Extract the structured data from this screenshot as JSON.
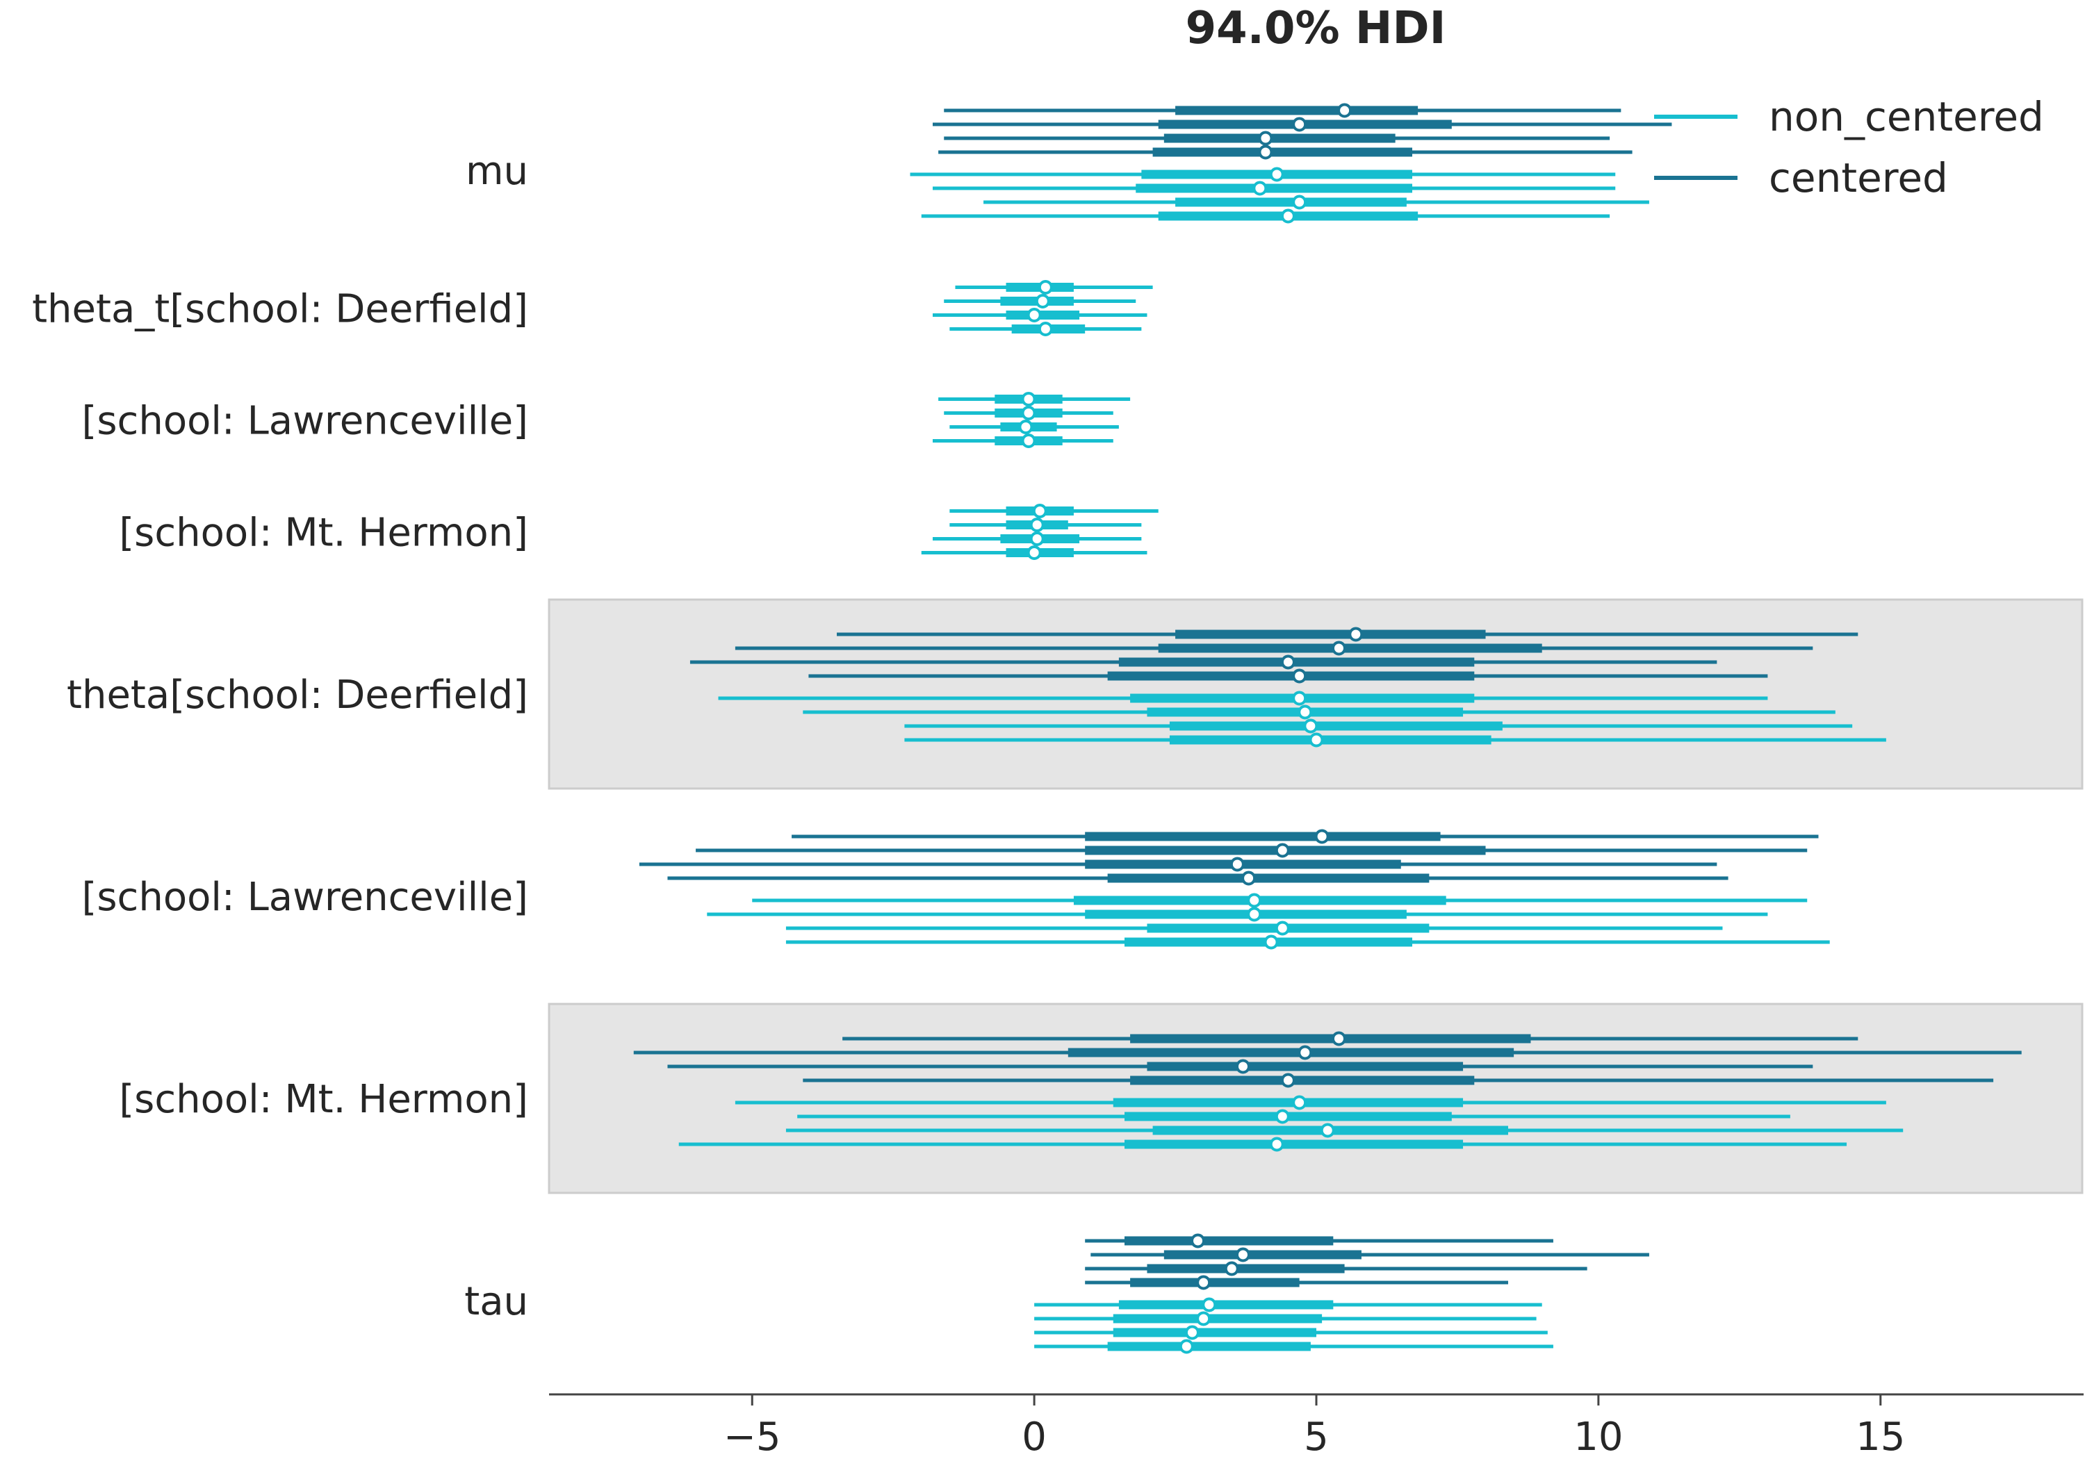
{
  "chart_data": {
    "type": "forest",
    "title": "94.0% HDI",
    "xlim": [
      -8.6,
      18.6
    ],
    "xticks": [
      {
        "value": -5,
        "label": "−5"
      },
      {
        "value": 0,
        "label": "0"
      },
      {
        "value": 5,
        "label": "5"
      },
      {
        "value": 10,
        "label": "10"
      },
      {
        "value": 15,
        "label": "15"
      }
    ],
    "colors": {
      "non_centered": "#17becf",
      "centered": "#1a7392",
      "band": "#e5e5e5",
      "axis": "#444444",
      "text": "#262626"
    },
    "legend": [
      {
        "name": "non_centered",
        "series": "non_centered"
      },
      {
        "name": "centered",
        "series": "centered"
      }
    ],
    "groups": [
      {
        "label": "mu",
        "shaded": false,
        "series": [
          {
            "name": "centered",
            "chains": [
              {
                "hdi": [
                  -1.6,
                  10.4
                ],
                "iqr": [
                  2.5,
                  6.8
                ],
                "median": 5.5
              },
              {
                "hdi": [
                  -1.8,
                  11.3
                ],
                "iqr": [
                  2.2,
                  7.4
                ],
                "median": 4.7
              },
              {
                "hdi": [
                  -1.6,
                  10.2
                ],
                "iqr": [
                  2.3,
                  6.4
                ],
                "median": 4.1
              },
              {
                "hdi": [
                  -1.7,
                  10.6
                ],
                "iqr": [
                  2.1,
                  6.7
                ],
                "median": 4.1
              }
            ]
          },
          {
            "name": "non_centered",
            "chains": [
              {
                "hdi": [
                  -2.2,
                  10.3
                ],
                "iqr": [
                  1.9,
                  6.7
                ],
                "median": 4.3
              },
              {
                "hdi": [
                  -1.8,
                  10.3
                ],
                "iqr": [
                  1.8,
                  6.7
                ],
                "median": 4.0
              },
              {
                "hdi": [
                  -0.9,
                  10.9
                ],
                "iqr": [
                  2.5,
                  6.6
                ],
                "median": 4.7
              },
              {
                "hdi": [
                  -2.0,
                  10.2
                ],
                "iqr": [
                  2.2,
                  6.8
                ],
                "median": 4.5
              }
            ]
          }
        ]
      },
      {
        "label": "theta_t[school: Deerfield]",
        "shaded": false,
        "series": [
          {
            "name": "non_centered",
            "chains": [
              {
                "hdi": [
                  -1.4,
                  2.1
                ],
                "iqr": [
                  -0.5,
                  0.7
                ],
                "median": 0.2
              },
              {
                "hdi": [
                  -1.6,
                  1.8
                ],
                "iqr": [
                  -0.6,
                  0.7
                ],
                "median": 0.15
              },
              {
                "hdi": [
                  -1.8,
                  2.0
                ],
                "iqr": [
                  -0.5,
                  0.8
                ],
                "median": 0.0
              },
              {
                "hdi": [
                  -1.5,
                  1.9
                ],
                "iqr": [
                  -0.4,
                  0.9
                ],
                "median": 0.2
              }
            ]
          }
        ]
      },
      {
        "label": "[school: Lawrenceville]",
        "shaded": false,
        "series": [
          {
            "name": "non_centered",
            "chains": [
              {
                "hdi": [
                  -1.7,
                  1.7
                ],
                "iqr": [
                  -0.7,
                  0.5
                ],
                "median": -0.1
              },
              {
                "hdi": [
                  -1.6,
                  1.4
                ],
                "iqr": [
                  -0.7,
                  0.5
                ],
                "median": -0.1
              },
              {
                "hdi": [
                  -1.5,
                  1.5
                ],
                "iqr": [
                  -0.6,
                  0.4
                ],
                "median": -0.15
              },
              {
                "hdi": [
                  -1.8,
                  1.4
                ],
                "iqr": [
                  -0.7,
                  0.5
                ],
                "median": -0.1
              }
            ]
          }
        ]
      },
      {
        "label": "[school: Mt. Hermon]",
        "shaded": false,
        "series": [
          {
            "name": "non_centered",
            "chains": [
              {
                "hdi": [
                  -1.5,
                  2.2
                ],
                "iqr": [
                  -0.5,
                  0.7
                ],
                "median": 0.1
              },
              {
                "hdi": [
                  -1.5,
                  1.9
                ],
                "iqr": [
                  -0.5,
                  0.6
                ],
                "median": 0.05
              },
              {
                "hdi": [
                  -1.8,
                  1.9
                ],
                "iqr": [
                  -0.6,
                  0.8
                ],
                "median": 0.05
              },
              {
                "hdi": [
                  -2.0,
                  2.0
                ],
                "iqr": [
                  -0.5,
                  0.7
                ],
                "median": 0.0
              }
            ]
          }
        ]
      },
      {
        "label": "theta[school: Deerfield]",
        "shaded": true,
        "series": [
          {
            "name": "centered",
            "chains": [
              {
                "hdi": [
                  -3.5,
                  14.6
                ],
                "iqr": [
                  2.5,
                  8.0
                ],
                "median": 5.7
              },
              {
                "hdi": [
                  -5.3,
                  13.8
                ],
                "iqr": [
                  2.2,
                  9.0
                ],
                "median": 5.4
              },
              {
                "hdi": [
                  -6.1,
                  12.1
                ],
                "iqr": [
                  1.5,
                  7.8
                ],
                "median": 4.5
              },
              {
                "hdi": [
                  -4.0,
                  13.0
                ],
                "iqr": [
                  1.3,
                  7.8
                ],
                "median": 4.7
              }
            ]
          },
          {
            "name": "non_centered",
            "chains": [
              {
                "hdi": [
                  -5.6,
                  13.0
                ],
                "iqr": [
                  1.7,
                  7.8
                ],
                "median": 4.7
              },
              {
                "hdi": [
                  -4.1,
                  14.2
                ],
                "iqr": [
                  2.0,
                  7.6
                ],
                "median": 4.8
              },
              {
                "hdi": [
                  -2.3,
                  14.5
                ],
                "iqr": [
                  2.4,
                  8.3
                ],
                "median": 4.9
              },
              {
                "hdi": [
                  -2.3,
                  15.1
                ],
                "iqr": [
                  2.4,
                  8.1
                ],
                "median": 5.0
              }
            ]
          }
        ]
      },
      {
        "label": "[school: Lawrenceville]",
        "shaded": false,
        "series": [
          {
            "name": "centered",
            "chains": [
              {
                "hdi": [
                  -4.3,
                  13.9
                ],
                "iqr": [
                  0.9,
                  7.2
                ],
                "median": 5.1
              },
              {
                "hdi": [
                  -6.0,
                  13.7
                ],
                "iqr": [
                  0.9,
                  8.0
                ],
                "median": 4.4
              },
              {
                "hdi": [
                  -7.0,
                  12.1
                ],
                "iqr": [
                  0.9,
                  6.5
                ],
                "median": 3.6
              },
              {
                "hdi": [
                  -6.5,
                  12.3
                ],
                "iqr": [
                  1.3,
                  7.0
                ],
                "median": 3.8
              }
            ]
          },
          {
            "name": "non_centered",
            "chains": [
              {
                "hdi": [
                  -5.0,
                  13.7
                ],
                "iqr": [
                  0.7,
                  7.3
                ],
                "median": 3.9
              },
              {
                "hdi": [
                  -5.8,
                  13.0
                ],
                "iqr": [
                  0.9,
                  6.6
                ],
                "median": 3.9
              },
              {
                "hdi": [
                  -4.4,
                  12.2
                ],
                "iqr": [
                  2.0,
                  7.0
                ],
                "median": 4.4
              },
              {
                "hdi": [
                  -4.4,
                  14.1
                ],
                "iqr": [
                  1.6,
                  6.7
                ],
                "median": 4.2
              }
            ]
          }
        ]
      },
      {
        "label": "[school: Mt. Hermon]",
        "shaded": true,
        "series": [
          {
            "name": "centered",
            "chains": [
              {
                "hdi": [
                  -3.4,
                  14.6
                ],
                "iqr": [
                  1.7,
                  8.8
                ],
                "median": 5.4
              },
              {
                "hdi": [
                  -7.1,
                  17.5
                ],
                "iqr": [
                  0.6,
                  8.5
                ],
                "median": 4.8
              },
              {
                "hdi": [
                  -6.5,
                  13.8
                ],
                "iqr": [
                  2.0,
                  7.6
                ],
                "median": 3.7
              },
              {
                "hdi": [
                  -4.1,
                  17.0
                ],
                "iqr": [
                  1.7,
                  7.8
                ],
                "median": 4.5
              }
            ]
          },
          {
            "name": "non_centered",
            "chains": [
              {
                "hdi": [
                  -5.3,
                  15.1
                ],
                "iqr": [
                  1.4,
                  7.6
                ],
                "median": 4.7
              },
              {
                "hdi": [
                  -4.2,
                  13.4
                ],
                "iqr": [
                  1.6,
                  7.4
                ],
                "median": 4.4
              },
              {
                "hdi": [
                  -4.4,
                  15.4
                ],
                "iqr": [
                  2.1,
                  8.4
                ],
                "median": 5.2
              },
              {
                "hdi": [
                  -6.3,
                  14.4
                ],
                "iqr": [
                  1.6,
                  7.6
                ],
                "median": 4.3
              }
            ]
          }
        ]
      },
      {
        "label": "tau",
        "shaded": false,
        "series": [
          {
            "name": "centered",
            "chains": [
              {
                "hdi": [
                  0.9,
                  9.2
                ],
                "iqr": [
                  1.6,
                  5.3
                ],
                "median": 2.9
              },
              {
                "hdi": [
                  1.0,
                  10.9
                ],
                "iqr": [
                  2.3,
                  5.8
                ],
                "median": 3.7
              },
              {
                "hdi": [
                  0.9,
                  9.8
                ],
                "iqr": [
                  2.0,
                  5.5
                ],
                "median": 3.5
              },
              {
                "hdi": [
                  0.9,
                  8.4
                ],
                "iqr": [
                  1.7,
                  4.7
                ],
                "median": 3.0
              }
            ]
          },
          {
            "name": "non_centered",
            "chains": [
              {
                "hdi": [
                  0.0,
                  9.0
                ],
                "iqr": [
                  1.5,
                  5.3
                ],
                "median": 3.1
              },
              {
                "hdi": [
                  0.0,
                  8.9
                ],
                "iqr": [
                  1.4,
                  5.1
                ],
                "median": 3.0
              },
              {
                "hdi": [
                  0.0,
                  9.1
                ],
                "iqr": [
                  1.4,
                  5.0
                ],
                "median": 2.8
              },
              {
                "hdi": [
                  0.0,
                  9.2
                ],
                "iqr": [
                  1.3,
                  4.9
                ],
                "median": 2.7
              }
            ]
          }
        ]
      }
    ]
  }
}
